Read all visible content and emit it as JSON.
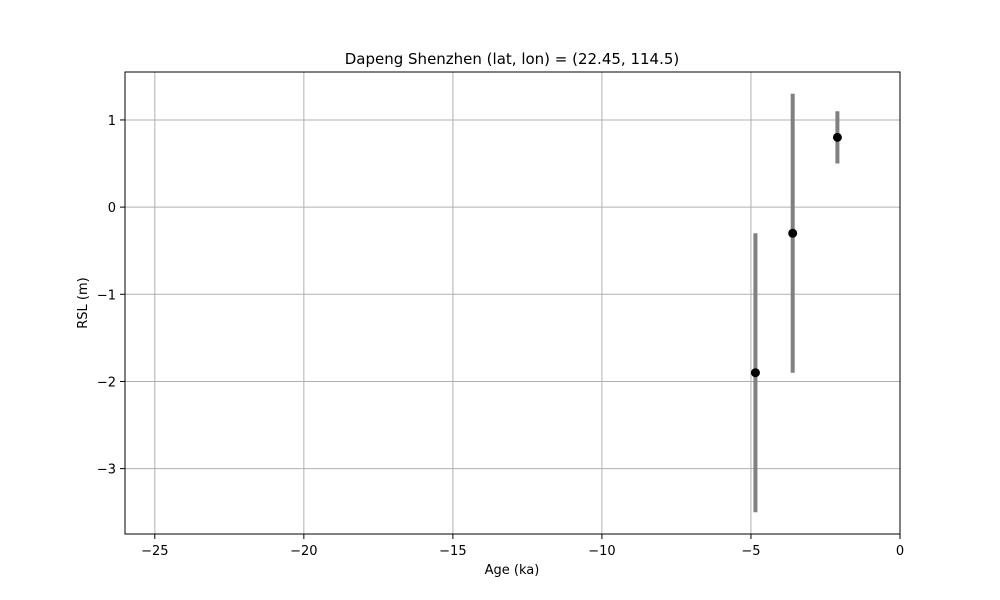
{
  "chart_data": {
    "type": "scatter",
    "title": "Dapeng Shenzhen (lat, lon) = (22.45, 114.5)",
    "xlabel": "Age (ka)",
    "ylabel": "RSL (m)",
    "xlim": [
      -26,
      0
    ],
    "ylim": [
      -3.75,
      1.55
    ],
    "xticks": [
      -25,
      -20,
      -15,
      -10,
      -5,
      0
    ],
    "xtick_labels": [
      "−25",
      "−20",
      "−15",
      "−10",
      "−5",
      "0"
    ],
    "yticks": [
      -3,
      -2,
      -1,
      0,
      1
    ],
    "ytick_labels": [
      "−3",
      "−2",
      "−1",
      "0",
      "1"
    ],
    "grid": true,
    "points": [
      {
        "x": -4.85,
        "y": -1.9,
        "y_low": -3.5,
        "y_high": -0.3
      },
      {
        "x": -3.6,
        "y": -0.3,
        "y_low": -1.9,
        "y_high": 1.3
      },
      {
        "x": -2.1,
        "y": 0.8,
        "y_low": 0.5,
        "y_high": 1.1
      }
    ],
    "colors": {
      "marker": "#000000",
      "errorbar": "#808080",
      "grid": "#b0b0b0"
    }
  }
}
